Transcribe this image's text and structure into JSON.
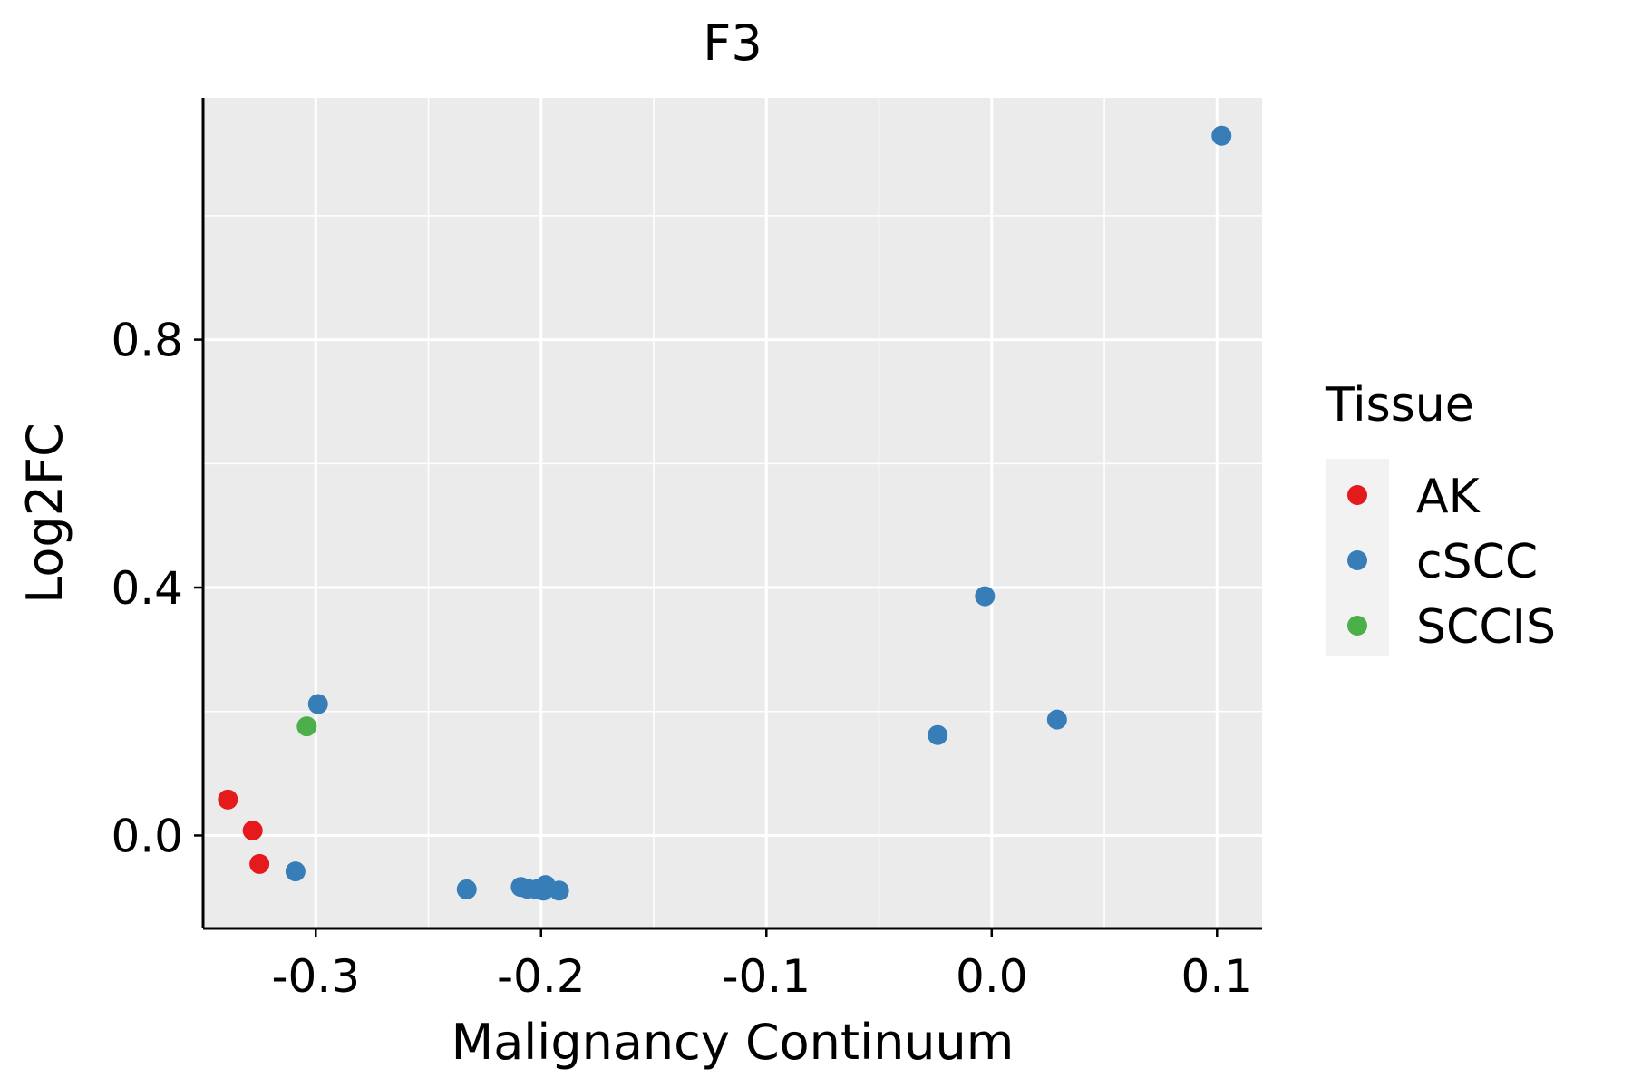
{
  "chart_data": {
    "type": "scatter",
    "title": "F3",
    "xlabel": "Malignancy Continuum",
    "ylabel": "Log2FC",
    "xlim": [
      -0.35,
      0.12
    ],
    "ylim": [
      -0.15,
      1.19
    ],
    "x_ticks": [
      -0.3,
      -0.2,
      -0.1,
      0.0,
      0.1
    ],
    "x_tick_labels": [
      "-0.3",
      "-0.2",
      "-0.1",
      "0.0",
      "0.1"
    ],
    "y_ticks": [
      0.0,
      0.4,
      0.8
    ],
    "y_tick_labels": [
      "0.0",
      "0.4",
      "0.8"
    ],
    "grid": true,
    "legend": {
      "title": "Tissue",
      "placement": "right",
      "entries": [
        {
          "label": "AK",
          "color": "#E41A1C"
        },
        {
          "label": "cSCC",
          "color": "#377EB8"
        },
        {
          "label": "SCCIS",
          "color": "#4DAF4A"
        }
      ]
    },
    "series": [
      {
        "name": "AK",
        "color": "#E41A1C",
        "points": [
          {
            "x": -0.339,
            "y": 0.058
          },
          {
            "x": -0.328,
            "y": 0.008
          },
          {
            "x": -0.325,
            "y": -0.046
          }
        ]
      },
      {
        "name": "cSCC",
        "color": "#377EB8",
        "points": [
          {
            "x": -0.299,
            "y": 0.212
          },
          {
            "x": -0.309,
            "y": -0.058
          },
          {
            "x": -0.233,
            "y": -0.087
          },
          {
            "x": -0.209,
            "y": -0.083
          },
          {
            "x": -0.206,
            "y": -0.086
          },
          {
            "x": -0.202,
            "y": -0.087
          },
          {
            "x": -0.199,
            "y": -0.089
          },
          {
            "x": -0.198,
            "y": -0.08
          },
          {
            "x": -0.192,
            "y": -0.089
          },
          {
            "x": -0.024,
            "y": 0.162
          },
          {
            "x": -0.003,
            "y": 0.386
          },
          {
            "x": 0.029,
            "y": 0.187
          },
          {
            "x": 0.102,
            "y": 1.129
          }
        ]
      },
      {
        "name": "SCCIS",
        "color": "#4DAF4A",
        "points": [
          {
            "x": -0.304,
            "y": 0.176
          }
        ]
      }
    ]
  }
}
